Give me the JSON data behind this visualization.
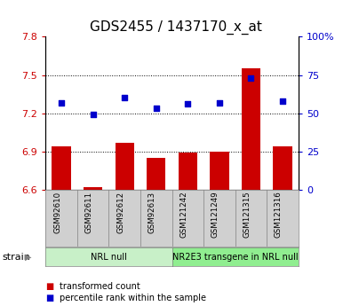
{
  "title": "GDS2455 / 1437170_x_at",
  "samples": [
    "GSM92610",
    "GSM92611",
    "GSM92612",
    "GSM92613",
    "GSM121242",
    "GSM121249",
    "GSM121315",
    "GSM121316"
  ],
  "transformed_count": [
    6.94,
    6.62,
    6.97,
    6.85,
    6.89,
    6.9,
    7.55,
    6.94
  ],
  "percentile_rank": [
    57,
    49,
    60,
    53,
    56,
    57,
    73,
    58
  ],
  "ylim_left": [
    6.6,
    7.8
  ],
  "ylim_right": [
    0,
    100
  ],
  "yticks_left": [
    6.6,
    6.9,
    7.2,
    7.5,
    7.8
  ],
  "yticks_right": [
    0,
    25,
    50,
    75,
    100
  ],
  "ytick_labels_left": [
    "6.6",
    "6.9",
    "7.2",
    "7.5",
    "7.8"
  ],
  "ytick_labels_right": [
    "0",
    "25",
    "50",
    "75",
    "100%"
  ],
  "bar_color": "#cc0000",
  "dot_color": "#0000cc",
  "bar_bottom": 6.6,
  "groups": [
    {
      "label": "NRL null",
      "start": 0,
      "end": 3,
      "color": "#c8f0c8"
    },
    {
      "label": "NR2E3 transgene in NRL null",
      "start": 4,
      "end": 7,
      "color": "#90ee90"
    }
  ],
  "strain_label": "strain",
  "legend_items": [
    {
      "color": "#cc0000",
      "label": "transformed count"
    },
    {
      "color": "#0000cc",
      "label": "percentile rank within the sample"
    }
  ],
  "background_color": "#ffffff",
  "plot_bg_color": "#ffffff",
  "tick_label_color_left": "#cc0000",
  "tick_label_color_right": "#0000cc",
  "xtick_bg_color": "#d0d0d0",
  "grid_yticks": [
    6.9,
    7.2,
    7.5
  ]
}
